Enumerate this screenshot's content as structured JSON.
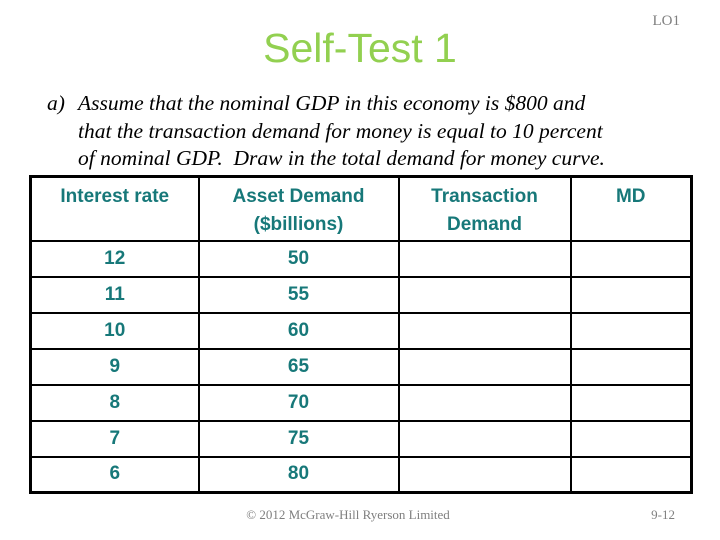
{
  "slide": {
    "lo_tag": "LO1",
    "title": "Self-Test 1",
    "question": {
      "marker": "a)",
      "lines": [
        "Assume that the nominal GDP in this economy is $800 and",
        "that the transaction demand for money is equal to 10 percent",
        "of nominal GDP.  Draw in the total demand for money curve."
      ]
    },
    "table": {
      "headers": [
        {
          "line1": "Interest rate",
          "line2": ""
        },
        {
          "line1": "Asset Demand",
          "line2": "($billions)"
        },
        {
          "line1": "Transaction",
          "line2": "Demand"
        },
        {
          "line1": "MD",
          "line2": ""
        }
      ],
      "rows": [
        {
          "interest_rate": "12",
          "asset_demand": "50",
          "transaction_demand": "",
          "md": ""
        },
        {
          "interest_rate": "11",
          "asset_demand": "55",
          "transaction_demand": "",
          "md": ""
        },
        {
          "interest_rate": "10",
          "asset_demand": "60",
          "transaction_demand": "",
          "md": ""
        },
        {
          "interest_rate": "9",
          "asset_demand": "65",
          "transaction_demand": "",
          "md": ""
        },
        {
          "interest_rate": "8",
          "asset_demand": "70",
          "transaction_demand": "",
          "md": ""
        },
        {
          "interest_rate": "7",
          "asset_demand": "75",
          "transaction_demand": "",
          "md": ""
        },
        {
          "interest_rate": "6",
          "asset_demand": "80",
          "transaction_demand": "",
          "md": ""
        }
      ]
    },
    "footer": {
      "copyright": "© 2012 McGraw-Hill Ryerson Limited",
      "page_number": "9-12"
    },
    "colors": {
      "title_green": "#92D050",
      "table_teal": "#177879",
      "footer_gray": "#7F7F7F"
    }
  }
}
